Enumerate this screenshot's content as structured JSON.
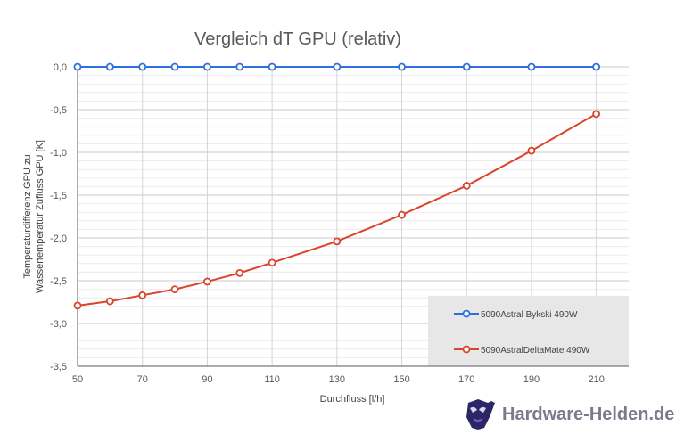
{
  "chart_data": {
    "type": "line",
    "title": "Vergleich dT GPU (relativ)",
    "xlabel": "Durchfluss [l/h]",
    "ylabel_lines": [
      "Temperaturdifferenz GPU zu",
      "Wassertemperatur Zufluss GPU  [K]"
    ],
    "x_ticks": [
      "50",
      "70",
      "90",
      "110",
      "130",
      "150",
      "170",
      "190",
      "210"
    ],
    "y_ticks": [
      "0,0",
      "-0,5",
      "-1,0",
      "-1,5",
      "-2,0",
      "-2,5",
      "-3,0",
      "-3,5"
    ],
    "xlim": [
      50,
      220
    ],
    "ylim": [
      -3.5,
      0
    ],
    "grid": true,
    "legend_position": "bottom-right",
    "series": [
      {
        "name": "5090Astral Bykski 490W",
        "color": "#2f6fe0",
        "x": [
          50,
          60,
          70,
          80,
          90,
          100,
          110,
          130,
          150,
          170,
          190,
          210
        ],
        "y": [
          0,
          0,
          0,
          0,
          0,
          0,
          0,
          0,
          0,
          0,
          0,
          0
        ]
      },
      {
        "name": "5090AstralDeltaMate 490W",
        "color": "#d9442a",
        "x": [
          50,
          60,
          70,
          80,
          90,
          100,
          110,
          130,
          150,
          170,
          190,
          210
        ],
        "y": [
          -2.79,
          -2.74,
          -2.67,
          -2.6,
          -2.51,
          -2.41,
          -2.29,
          -2.04,
          -1.73,
          -1.39,
          -0.98,
          -0.55
        ]
      }
    ]
  },
  "watermark": {
    "text": "Hardware-Helden.de",
    "icon": "mask-icon"
  }
}
